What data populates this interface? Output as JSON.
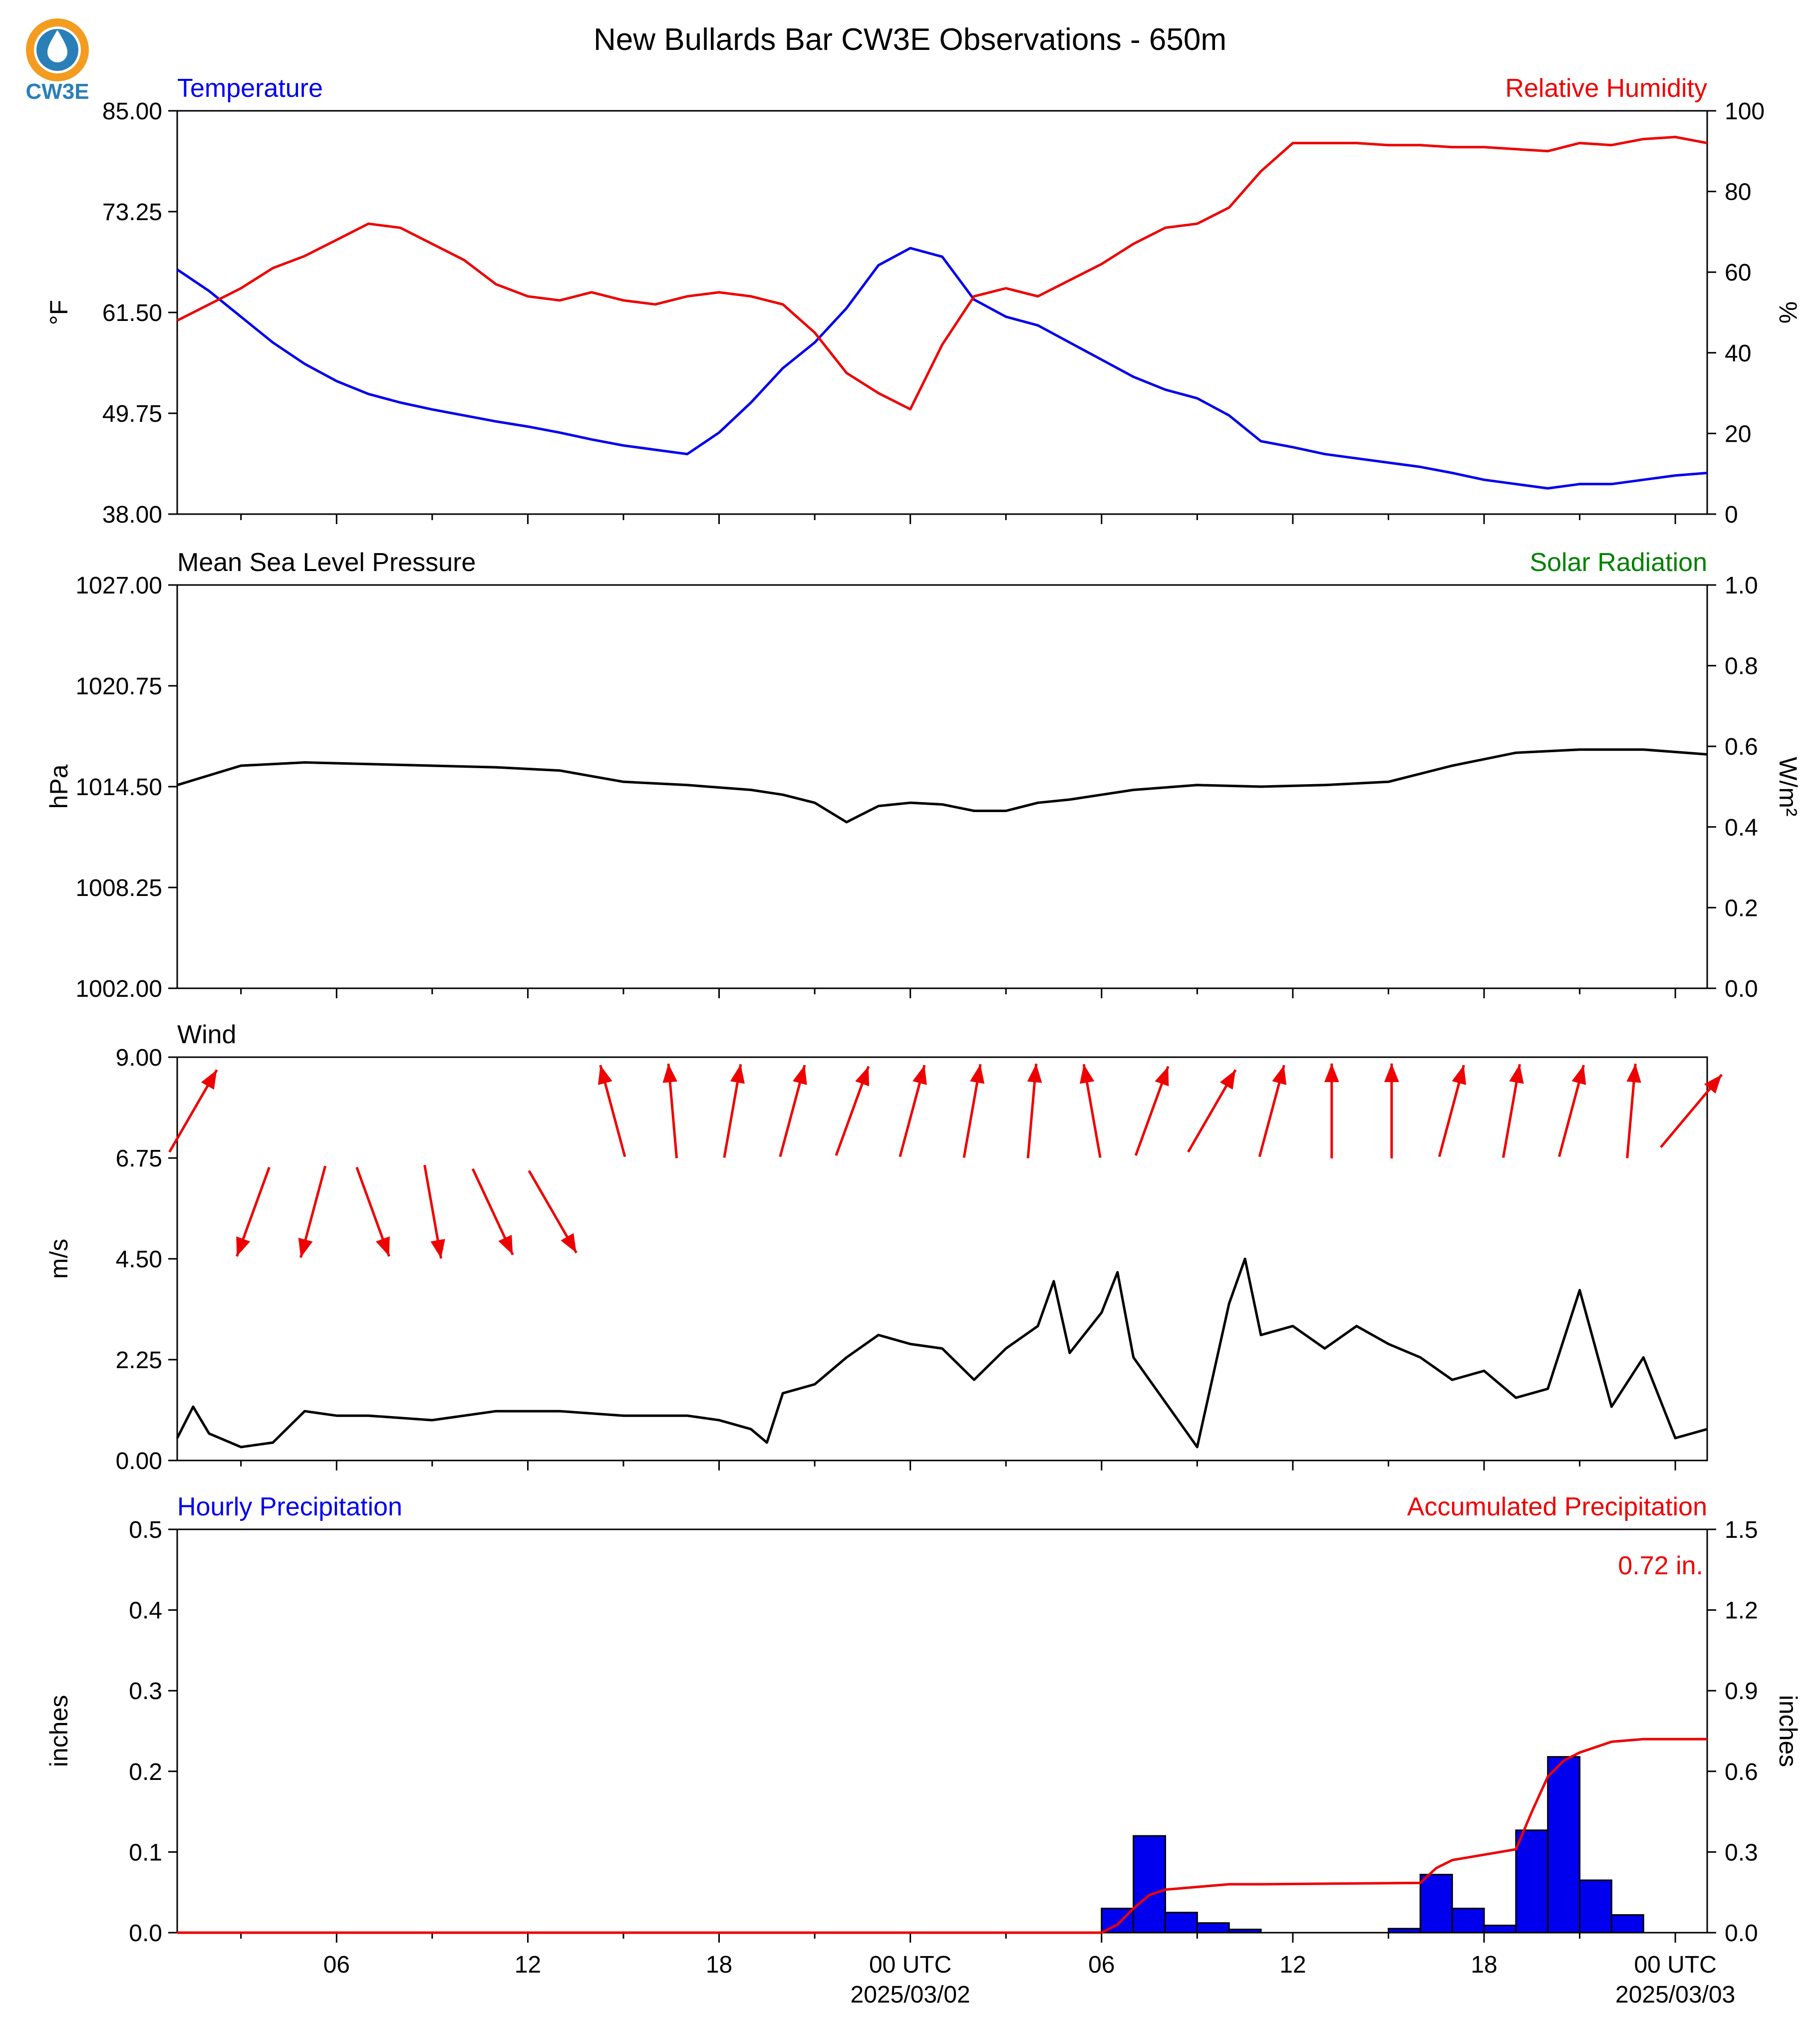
{
  "title": "New Bullards Bar CW3E Observations - 650m",
  "logo": {
    "text": "CW3E",
    "colors": {
      "sun": "#f39c1f",
      "water": "#2a7fb8",
      "text": "#2a7fb8"
    }
  },
  "x_axis": {
    "tick_labels": [
      "06",
      "12",
      "18",
      "00 UTC",
      "06",
      "12",
      "18",
      "00 UTC"
    ],
    "date_labels": [
      "2025/03/02",
      "2025/03/03"
    ]
  },
  "chart_data": [
    {
      "type": "line",
      "panel": "temperature-humidity",
      "left_title": "Temperature",
      "right_title": "Relative Humidity",
      "ylabel": "°F",
      "ylabel_right": "%",
      "ylim": [
        38,
        85
      ],
      "ylim_right": [
        0,
        100
      ],
      "yticks": [
        "85.00",
        "73.25",
        "61.50",
        "49.75",
        "38.00"
      ],
      "yticks_right": [
        "100",
        "80",
        "60",
        "40",
        "20",
        "0"
      ],
      "x_hours": [
        0,
        1,
        2,
        3,
        4,
        5,
        6,
        7,
        8,
        9,
        10,
        11,
        12,
        13,
        14,
        15,
        16,
        17,
        18,
        19,
        20,
        21,
        22,
        23,
        24,
        25,
        26,
        27,
        28,
        29,
        30,
        31,
        32,
        33,
        34,
        35,
        36,
        37,
        38,
        39,
        40,
        41,
        42,
        43,
        44,
        45,
        46,
        47,
        48
      ],
      "series": [
        {
          "name": "Temperature",
          "color": "#0000ee",
          "axis": "left",
          "values": [
            66.5,
            64,
            61,
            58,
            55.5,
            53.5,
            52,
            51,
            50.2,
            49.5,
            48.8,
            48.2,
            47.5,
            46.7,
            46,
            45.5,
            45,
            47.5,
            51,
            55,
            58,
            62,
            67,
            69,
            68,
            63,
            61,
            60,
            58,
            56,
            54,
            52.5,
            51.5,
            49.5,
            46.5,
            45.8,
            45,
            44.5,
            44,
            43.5,
            42.8,
            42,
            41.5,
            41,
            41.5,
            41.5,
            42,
            42.5,
            42.8
          ]
        },
        {
          "name": "Relative Humidity",
          "color": "#ee0000",
          "axis": "right",
          "values": [
            48,
            52,
            56,
            61,
            64,
            68,
            72,
            71,
            67,
            63,
            57,
            54,
            53,
            55,
            53,
            52,
            54,
            55,
            54,
            52,
            45,
            35,
            30,
            26,
            42,
            54,
            56,
            54,
            58,
            62,
            67,
            71,
            72,
            76,
            85,
            92,
            92,
            92,
            91.5,
            91.5,
            91,
            91,
            90.5,
            90,
            92,
            91.5,
            93,
            93.5,
            92
          ]
        }
      ]
    },
    {
      "type": "line",
      "panel": "pressure-solar",
      "left_title": "Mean Sea Level Pressure",
      "right_title": "Solar Radiation",
      "ylabel": "hPa",
      "ylabel_right": "W/m²",
      "ylim": [
        1002,
        1027
      ],
      "ylim_right": [
        0,
        1
      ],
      "yticks": [
        "1027.00",
        "1020.75",
        "1014.50",
        "1008.25",
        "1002.00"
      ],
      "yticks_right": [
        "1.0",
        "0.8",
        "0.6",
        "0.4",
        "0.2",
        "0.0"
      ],
      "x_hours": [
        0,
        2,
        4,
        6,
        8,
        10,
        12,
        14,
        16,
        18,
        19,
        20,
        21,
        22,
        23,
        24,
        25,
        26,
        27,
        28,
        29,
        30,
        32,
        34,
        36,
        38,
        40,
        42,
        44,
        46,
        48
      ],
      "series": [
        {
          "name": "Mean Sea Level Pressure",
          "color": "#000000",
          "axis": "left",
          "values": [
            1014.6,
            1015.8,
            1016,
            1015.9,
            1015.8,
            1015.7,
            1015.5,
            1014.8,
            1014.6,
            1014.3,
            1014,
            1013.5,
            1012.3,
            1013.3,
            1013.5,
            1013.4,
            1013,
            1013,
            1013.5,
            1013.7,
            1014,
            1014.3,
            1014.6,
            1014.5,
            1014.6,
            1014.8,
            1015.8,
            1016.6,
            1016.8,
            1016.8,
            1016.5
          ]
        }
      ]
    },
    {
      "type": "line",
      "panel": "wind",
      "left_title": "Wind",
      "ylabel": "m/s",
      "ylim": [
        0,
        9
      ],
      "yticks": [
        "9.00",
        "6.75",
        "4.50",
        "2.25",
        "0.00"
      ],
      "x_hours": [
        0,
        0.5,
        1,
        2,
        3,
        4,
        5,
        6,
        8,
        10,
        12,
        14,
        16,
        17,
        18,
        18.5,
        19,
        20,
        21,
        22,
        23,
        24,
        25,
        26,
        27,
        27.5,
        28,
        29,
        29.5,
        30,
        31,
        32,
        33,
        33.5,
        34,
        35,
        36,
        37,
        38,
        39,
        40,
        41,
        42,
        43,
        44,
        45,
        46,
        47,
        48
      ],
      "series": [
        {
          "name": "Wind",
          "color": "#000000",
          "axis": "left",
          "values": [
            0.5,
            1.2,
            0.6,
            0.3,
            0.4,
            1.1,
            1.0,
            1.0,
            0.9,
            1.1,
            1.1,
            1.0,
            1.0,
            0.9,
            0.7,
            0.4,
            1.5,
            1.7,
            2.3,
            2.8,
            2.6,
            2.5,
            1.8,
            2.5,
            3.0,
            4.0,
            2.4,
            3.3,
            4.2,
            2.3,
            1.3,
            0.3,
            3.5,
            4.5,
            2.8,
            3.0,
            2.5,
            3.0,
            2.6,
            2.3,
            1.8,
            2.0,
            1.4,
            1.6,
            3.8,
            1.2,
            2.3,
            0.5,
            0.7
          ]
        }
      ],
      "wind_directions_deg": [
        30,
        200,
        195,
        160,
        170,
        155,
        150,
        345,
        355,
        10,
        15,
        20,
        15,
        10,
        5,
        350,
        20,
        30,
        15,
        0,
        0,
        15,
        10,
        15,
        5,
        40
      ]
    },
    {
      "type": "bar",
      "panel": "precipitation",
      "left_title": "Hourly Precipitation",
      "right_title": "Accumulated Precipitation",
      "annotation": "0.72 in.",
      "ylabel": "inches",
      "ylabel_right": "inches",
      "ylim": [
        0,
        0.5
      ],
      "ylim_right": [
        0,
        1.5
      ],
      "yticks": [
        "0.5",
        "0.4",
        "0.3",
        "0.2",
        "0.1",
        "0.0"
      ],
      "yticks_right": [
        "1.5",
        "1.2",
        "0.9",
        "0.6",
        "0.3",
        "0.0"
      ],
      "bar_color": "#0000ee",
      "bars": {
        "x_hours": [
          29,
          30,
          31,
          32,
          33,
          38,
          39,
          40,
          41,
          42,
          43,
          44,
          45
        ],
        "values": [
          0.03,
          0.12,
          0.025,
          0.012,
          0.004,
          0.005,
          0.072,
          0.03,
          0.009,
          0.127,
          0.218,
          0.065,
          0.022
        ]
      },
      "accumulated": {
        "name": "Accumulated Precipitation",
        "color": "#ee0000",
        "x_hours": [
          0,
          29,
          29.5,
          30,
          30.5,
          31,
          32,
          33,
          34,
          39,
          39.5,
          40,
          40.5,
          41,
          42,
          42.5,
          43,
          43.5,
          44,
          45,
          46,
          48
        ],
        "values": [
          0,
          0,
          0.03,
          0.09,
          0.14,
          0.16,
          0.17,
          0.18,
          0.18,
          0.185,
          0.24,
          0.27,
          0.28,
          0.29,
          0.31,
          0.45,
          0.58,
          0.64,
          0.67,
          0.71,
          0.72,
          0.72
        ]
      }
    }
  ]
}
